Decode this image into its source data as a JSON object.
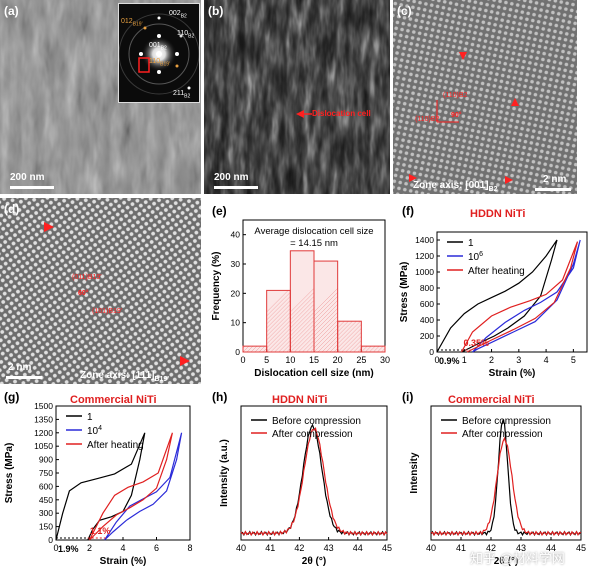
{
  "figure": {
    "panels": {
      "a": {
        "label": "(a)",
        "scalebar": "200 nm",
        "saed": {
          "labels": [
            "002B2",
            "012B19'",
            "110B2",
            "001B2",
            "110B19'",
            "211B2"
          ],
          "l002": "002",
          "s002": "B2",
          "l012": "012",
          "s012": "B19'",
          "l110a": "110",
          "s110a": "B2",
          "l001": "001",
          "s001": "B2",
          "l110b": "110",
          "s110b": "B19'",
          "l211": "211",
          "s211": "B2"
        }
      },
      "b": {
        "label": "(b)",
        "scalebar": "200 nm",
        "annotation": "Dislocation cell"
      },
      "c": {
        "label": "(c)",
        "scalebar": "2 nm",
        "zone_axis": "Zone axis: [001]",
        "zone_sub": "B2",
        "ann1": "(110)B2",
        "ann2": "(110)B2",
        "angle": "90°"
      },
      "d": {
        "label": "(d)",
        "scalebar": "2 nm",
        "zone_axis": "Zone axis: [111]",
        "zone_sub": "B19'",
        "ann1": "(011)B19'",
        "ann2": "(101)B19'",
        "angle": "60°"
      },
      "e": {
        "label": "(e)"
      },
      "f": {
        "label": "(f)",
        "title": "HDDN NiTi",
        "strain_ann1": "0.9%",
        "strain_ann2": "0.35%"
      },
      "g": {
        "label": "(g)",
        "title": "Commercial NiTi",
        "strain_ann1": "1.9%",
        "strain_ann2": "1.1%"
      },
      "h": {
        "label": "(h)",
        "title": "HDDN NiTi"
      },
      "i": {
        "label": "(i)",
        "title": "Commercial NiTi"
      }
    },
    "watermark": "知乎 @材料学网"
  },
  "chart_data": [
    {
      "id": "e",
      "type": "bar",
      "title": "",
      "annotation": [
        "Average dislocation cell size",
        "= 14.15 nm"
      ],
      "xlabel": "Dislocation cell size (nm)",
      "ylabel": "Frequency (%)",
      "xlim": [
        0,
        30
      ],
      "ylim": [
        0,
        45
      ],
      "xticks": [
        0,
        5,
        10,
        15,
        20,
        25,
        30
      ],
      "yticks": [
        0,
        10,
        20,
        30,
        40
      ],
      "bins": [
        [
          0,
          5
        ],
        [
          5,
          10
        ],
        [
          10,
          15
        ],
        [
          15,
          20
        ],
        [
          20,
          25
        ],
        [
          25,
          30
        ]
      ],
      "values": [
        2,
        21,
        34.5,
        31,
        10.5,
        2
      ],
      "color": "#e03a3a"
    },
    {
      "id": "f",
      "type": "line",
      "title": "HDDN NiTi",
      "xlabel": "Strain (%)",
      "ylabel": "Stress (MPa)",
      "xlim": [
        0,
        5.5
      ],
      "ylim": [
        0,
        1500
      ],
      "xticks": [
        0,
        1,
        2,
        3,
        4,
        5
      ],
      "yticks": [
        0,
        200,
        400,
        600,
        800,
        1000,
        1200,
        1400
      ],
      "series": [
        {
          "name": "1",
          "color": "#000000",
          "x": [
            0,
            0.5,
            1,
            1.5,
            2,
            2.5,
            3,
            3.5,
            4,
            4.4,
            4.2,
            3.8,
            3.2,
            2.6,
            2.1,
            1.6,
            1.2,
            0.9
          ],
          "y": [
            0,
            300,
            480,
            600,
            680,
            760,
            860,
            1000,
            1200,
            1400,
            1150,
            700,
            450,
            300,
            200,
            120,
            50,
            0
          ]
        },
        {
          "name": "10⁶",
          "label_base": "10",
          "label_sup": "6",
          "color": "#2b2bd9",
          "x": [
            1.3,
            1.8,
            2.5,
            3.2,
            3.8,
            4.4,
            5.0,
            5.25,
            5.0,
            4.4,
            3.6,
            2.8,
            2.0,
            1.5,
            1.3
          ],
          "y": [
            0,
            180,
            370,
            520,
            620,
            750,
            1050,
            1400,
            1100,
            650,
            380,
            250,
            120,
            40,
            0
          ]
        },
        {
          "name": "After heating",
          "color": "#e02020",
          "x": [
            0.9,
            1.3,
            2.0,
            2.7,
            3.4,
            4.0,
            4.6,
            5.15,
            4.9,
            4.3,
            3.6,
            2.8,
            2.0,
            1.4,
            1.1
          ],
          "y": [
            0,
            250,
            450,
            560,
            640,
            720,
            900,
            1380,
            1050,
            620,
            420,
            280,
            150,
            50,
            0
          ]
        }
      ]
    },
    {
      "id": "g",
      "type": "line",
      "title": "Commercial NiTi",
      "xlabel": "Strain (%)",
      "ylabel": "Stress (MPa)",
      "xlim": [
        0,
        8
      ],
      "ylim": [
        0,
        1500
      ],
      "xticks": [
        0,
        2,
        4,
        6,
        8
      ],
      "yticks": [
        0,
        150,
        300,
        450,
        600,
        750,
        900,
        1050,
        1200,
        1350,
        1500
      ],
      "series": [
        {
          "name": "1",
          "color": "#000000",
          "x": [
            0,
            0.4,
            0.8,
            1.5,
            2.5,
            3.5,
            4.5,
            5.3,
            5.0,
            4.5,
            4.0,
            3.3,
            2.6,
            2.2,
            1.9
          ],
          "y": [
            0,
            300,
            550,
            640,
            690,
            740,
            850,
            1200,
            900,
            500,
            320,
            260,
            220,
            120,
            0
          ]
        },
        {
          "name": "10⁴",
          "label_base": "10",
          "label_sup": "4",
          "color": "#2b2bd9",
          "x": [
            2.9,
            3.6,
            4.4,
            5.2,
            6.0,
            6.8,
            7.5,
            7.2,
            6.6,
            5.8,
            5.0,
            4.2,
            3.4,
            2.9
          ],
          "y": [
            0,
            200,
            380,
            460,
            540,
            700,
            1200,
            900,
            550,
            400,
            320,
            220,
            90,
            0
          ]
        },
        {
          "name": "After heating",
          "color": "#e02020",
          "x": [
            2.0,
            2.8,
            3.5,
            4.3,
            5.2,
            6.1,
            6.95,
            6.6,
            6.0,
            5.2,
            4.4,
            3.6,
            2.8,
            2.0
          ],
          "y": [
            0,
            300,
            500,
            590,
            650,
            750,
            1200,
            900,
            580,
            450,
            360,
            280,
            150,
            0
          ]
        }
      ]
    },
    {
      "id": "h",
      "type": "line",
      "title": "HDDN NiTi",
      "xlabel": "2θ (°)",
      "ylabel": "Intensity (a.u.)",
      "xlim": [
        40,
        45
      ],
      "xticks": [
        40,
        41,
        42,
        43,
        44,
        45
      ],
      "series": [
        {
          "name": "Before compression",
          "color": "#000000",
          "center": 42.45,
          "width": 0.45,
          "height": 0.8,
          "baseline": 0.05
        },
        {
          "name": "After compression",
          "color": "#e02020",
          "center": 42.5,
          "width": 0.48,
          "height": 0.78,
          "baseline": 0.05
        }
      ]
    },
    {
      "id": "i",
      "type": "line",
      "title": "Commercial NiTi",
      "xlabel": "2θ (°)",
      "ylabel": "Intensity",
      "xlim": [
        40,
        45
      ],
      "xticks": [
        40,
        41,
        42,
        43,
        44,
        45
      ],
      "series": [
        {
          "name": "Before compression",
          "color": "#000000",
          "center": 42.4,
          "width": 0.22,
          "height": 0.85,
          "baseline": 0.05
        },
        {
          "name": "After compression",
          "color": "#e02020",
          "center": 42.45,
          "width": 0.35,
          "height": 0.7,
          "baseline": 0.05
        }
      ]
    }
  ]
}
